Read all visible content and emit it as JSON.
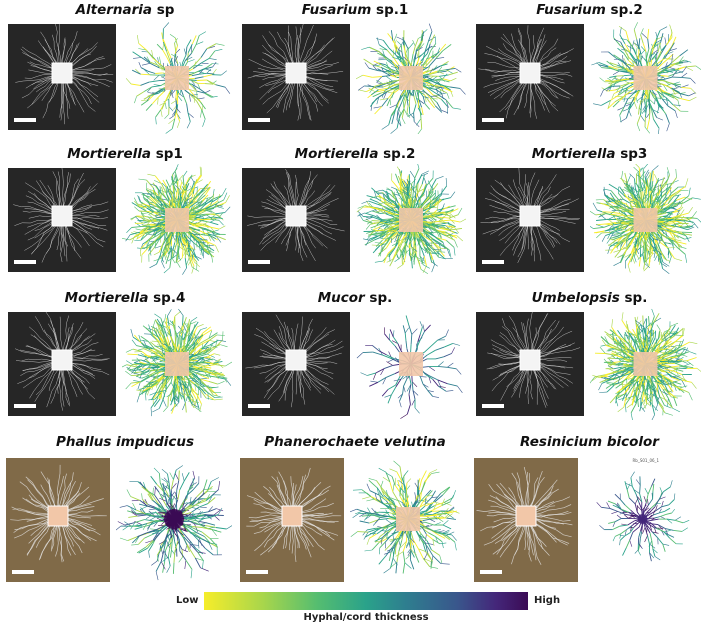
{
  "panels": [
    {
      "genus": "Alternaria",
      "rest": " sp",
      "background": "dark",
      "network": "sparse",
      "tiny_label": ""
    },
    {
      "genus": "Fusarium",
      "rest": " sp.1",
      "background": "dark",
      "network": "medium",
      "tiny_label": ""
    },
    {
      "genus": "Fusarium",
      "rest": " sp.2",
      "background": "dark",
      "network": "medium",
      "tiny_label": ""
    },
    {
      "genus": "Mortierella",
      "rest": " sp1",
      "background": "dark",
      "network": "dense",
      "tiny_label": ""
    },
    {
      "genus": "Mortierella",
      "rest": " sp.2",
      "background": "dark",
      "network": "dense",
      "tiny_label": ""
    },
    {
      "genus": "Mortierella",
      "rest": " sp3",
      "background": "dark",
      "network": "dense",
      "tiny_label": ""
    },
    {
      "genus": "Mortierella",
      "rest": " sp.4",
      "background": "dark",
      "network": "dense",
      "tiny_label": ""
    },
    {
      "genus": "Mucor",
      "rest": " sp.",
      "background": "dark",
      "network": "sparse-dark",
      "tiny_label": ""
    },
    {
      "genus": "Umbelopsis",
      "rest": " sp.",
      "background": "dark",
      "network": "dense",
      "tiny_label": ""
    },
    {
      "genus": "Phallus impudicus",
      "rest": "",
      "background": "soil",
      "network": "cords",
      "tiny_label": ""
    },
    {
      "genus": "Phanerochaete velutina",
      "rest": "",
      "background": "soil",
      "network": "medium",
      "tiny_label": ""
    },
    {
      "genus": "Resinicium bicolor",
      "rest": "",
      "background": "soil",
      "network": "star",
      "tiny_label": "Rb_S01_06_1"
    }
  ],
  "legend": {
    "low": "Low",
    "high": "High",
    "title": "Hyphal/cord thickness",
    "colors": [
      "#f6ed2a",
      "#a9d64b",
      "#55bd70",
      "#2aa28a",
      "#2e7f8f",
      "#39578c",
      "#44277a",
      "#3b0b55"
    ]
  },
  "colors": {
    "inoculum_block": "#f2c7a8",
    "photo_dark": "#262626",
    "photo_soil": "#8a7350",
    "hyphae_light": "#e8e8e8"
  }
}
